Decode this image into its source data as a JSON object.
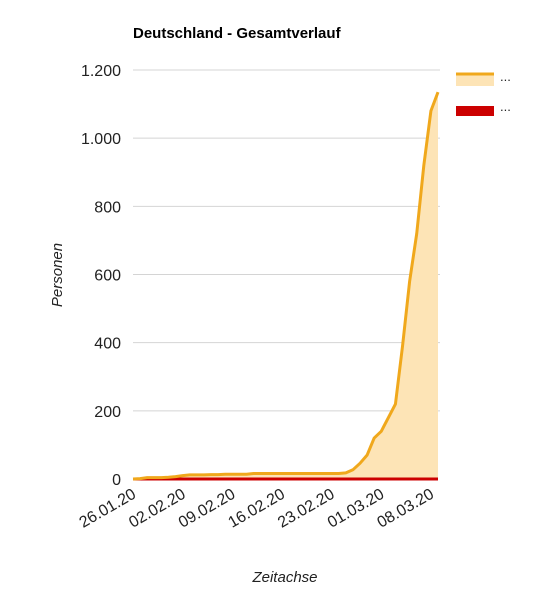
{
  "chart_data": {
    "type": "area",
    "title": "Deutschland - Gesamtverlauf",
    "xlabel": "Zeitachse",
    "ylabel": "Personen",
    "ylim": [
      0,
      1200
    ],
    "yticks": [
      0,
      200,
      400,
      600,
      800,
      1000,
      1200
    ],
    "ytick_labels": [
      "0",
      "200",
      "400",
      "600",
      "800",
      "1.000",
      "1.200"
    ],
    "xlim": [
      "2020-01-26",
      "2020-03-09"
    ],
    "xticks": [
      "2020-01-26",
      "2020-02-02",
      "2020-02-09",
      "2020-02-16",
      "2020-02-23",
      "2020-03-01",
      "2020-03-08"
    ],
    "xtick_labels": [
      "26.01.20",
      "02.02.20",
      "09.02.20",
      "16.02.20",
      "23.02.20",
      "01.03.20",
      "08.03.20"
    ],
    "grid": true,
    "legend_position": "top-right",
    "series": [
      {
        "name": "...",
        "color": "#f0a81c",
        "fill": "#fde4b6",
        "points": [
          [
            "2020-01-26",
            0
          ],
          [
            "2020-01-27",
            1
          ],
          [
            "2020-01-28",
            4
          ],
          [
            "2020-01-29",
            4
          ],
          [
            "2020-01-30",
            4
          ],
          [
            "2020-01-31",
            5
          ],
          [
            "2020-02-01",
            7
          ],
          [
            "2020-02-02",
            10
          ],
          [
            "2020-02-03",
            12
          ],
          [
            "2020-02-04",
            12
          ],
          [
            "2020-02-05",
            12
          ],
          [
            "2020-02-06",
            13
          ],
          [
            "2020-02-07",
            13
          ],
          [
            "2020-02-08",
            14
          ],
          [
            "2020-02-09",
            14
          ],
          [
            "2020-02-10",
            14
          ],
          [
            "2020-02-11",
            14
          ],
          [
            "2020-02-12",
            16
          ],
          [
            "2020-02-13",
            16
          ],
          [
            "2020-02-14",
            16
          ],
          [
            "2020-02-15",
            16
          ],
          [
            "2020-02-16",
            16
          ],
          [
            "2020-02-17",
            16
          ],
          [
            "2020-02-18",
            16
          ],
          [
            "2020-02-19",
            16
          ],
          [
            "2020-02-20",
            16
          ],
          [
            "2020-02-21",
            16
          ],
          [
            "2020-02-22",
            16
          ],
          [
            "2020-02-23",
            16
          ],
          [
            "2020-02-24",
            16
          ],
          [
            "2020-02-25",
            18
          ],
          [
            "2020-02-26",
            27
          ],
          [
            "2020-02-27",
            46
          ],
          [
            "2020-02-28",
            70
          ],
          [
            "2020-02-29",
            120
          ],
          [
            "2020-03-01",
            140
          ],
          [
            "2020-03-02",
            180
          ],
          [
            "2020-03-03",
            220
          ],
          [
            "2020-03-04",
            390
          ],
          [
            "2020-03-05",
            580
          ],
          [
            "2020-03-06",
            720
          ],
          [
            "2020-03-07",
            920
          ],
          [
            "2020-03-08",
            1080
          ],
          [
            "2020-03-09",
            1135
          ]
        ]
      },
      {
        "name": "...",
        "color": "#cc0000",
        "points": [
          [
            "2020-01-26",
            0
          ],
          [
            "2020-03-09",
            0
          ]
        ]
      }
    ]
  }
}
